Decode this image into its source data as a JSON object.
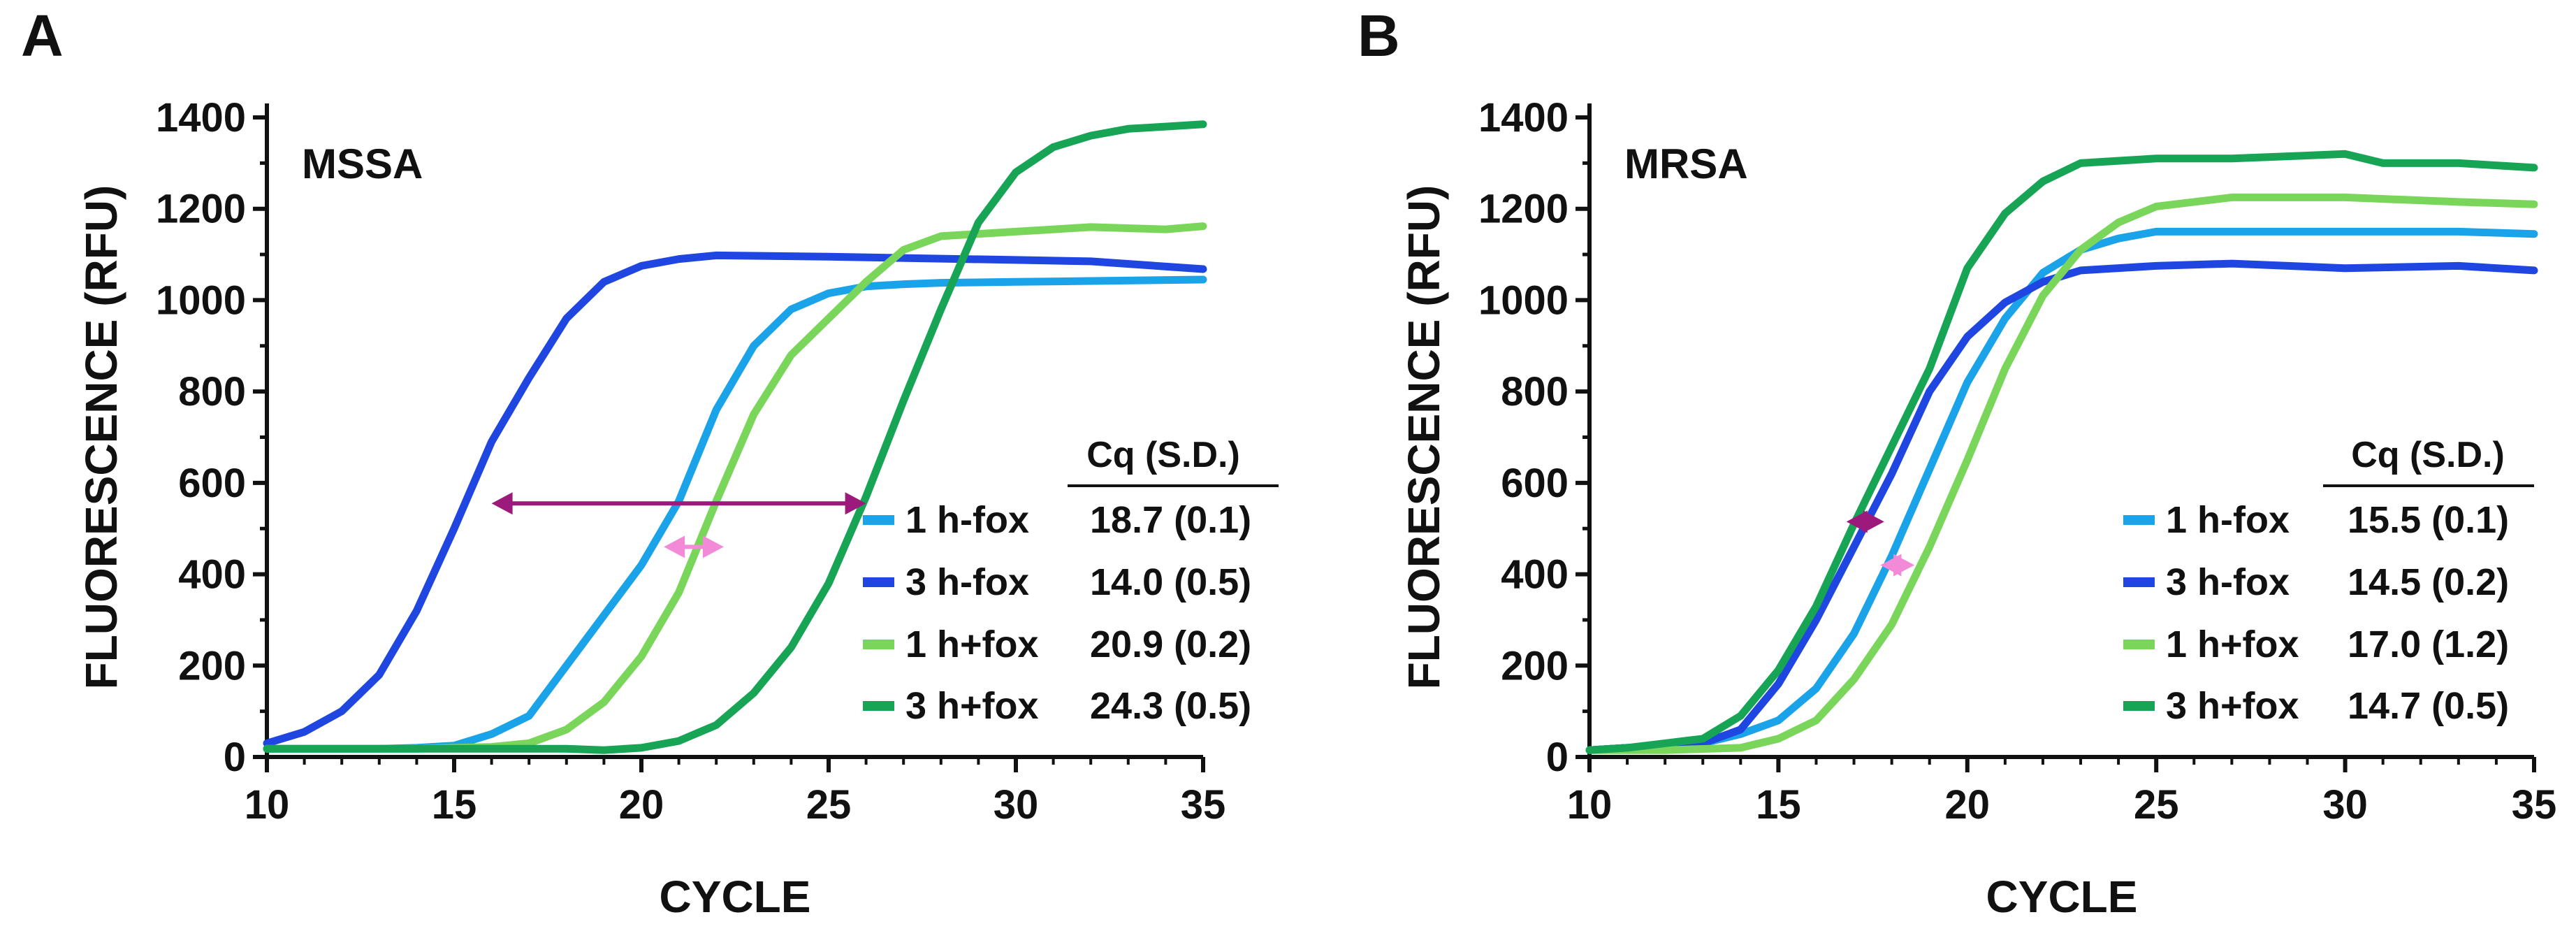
{
  "figure": {
    "background": "#ffffff",
    "text_color": "#111111"
  },
  "chart_data": [
    {
      "panel": "A",
      "type": "line",
      "title": "MSSA",
      "xlabel": "CYCLE",
      "ylabel": "FLUORESCENCE (RFU)",
      "xlim": [
        10,
        35
      ],
      "ylim": [
        0,
        1400
      ],
      "xticks": [
        10,
        15,
        20,
        25,
        30,
        35
      ],
      "yticks": [
        0,
        200,
        400,
        600,
        800,
        1000,
        1200,
        1400
      ],
      "grid": false,
      "legend_position": "bottom-right",
      "cq_header": "Cq (S.D.)",
      "series": [
        {
          "name": "1 h-fox",
          "cq": "18.7 (0.1)",
          "color": "#1aa3e8",
          "points": [
            [
              10,
              18
            ],
            [
              11,
              18
            ],
            [
              12,
              18
            ],
            [
              13,
              18
            ],
            [
              14,
              20
            ],
            [
              15,
              25
            ],
            [
              16,
              50
            ],
            [
              17,
              90
            ],
            [
              18,
              200
            ],
            [
              19,
              310
            ],
            [
              20,
              420
            ],
            [
              21,
              560
            ],
            [
              22,
              760
            ],
            [
              23,
              900
            ],
            [
              24,
              980
            ],
            [
              25,
              1015
            ],
            [
              26,
              1030
            ],
            [
              27,
              1035
            ],
            [
              28,
              1038
            ],
            [
              30,
              1040
            ],
            [
              32,
              1042
            ],
            [
              35,
              1045
            ]
          ]
        },
        {
          "name": "3 h-fox",
          "cq": "14.0 (0.5)",
          "color": "#1f46e0",
          "points": [
            [
              10,
              30
            ],
            [
              11,
              55
            ],
            [
              12,
              100
            ],
            [
              13,
              180
            ],
            [
              14,
              320
            ],
            [
              15,
              500
            ],
            [
              16,
              690
            ],
            [
              17,
              830
            ],
            [
              18,
              960
            ],
            [
              19,
              1040
            ],
            [
              20,
              1075
            ],
            [
              21,
              1090
            ],
            [
              22,
              1098
            ],
            [
              25,
              1095
            ],
            [
              30,
              1088
            ],
            [
              32,
              1085
            ],
            [
              35,
              1068
            ]
          ]
        },
        {
          "name": "1 h+fox",
          "cq": "20.9 (0.2)",
          "color": "#7ad65a",
          "points": [
            [
              10,
              18
            ],
            [
              12,
              18
            ],
            [
              14,
              18
            ],
            [
              16,
              22
            ],
            [
              17,
              30
            ],
            [
              18,
              60
            ],
            [
              19,
              120
            ],
            [
              20,
              220
            ],
            [
              21,
              360
            ],
            [
              22,
              560
            ],
            [
              23,
              750
            ],
            [
              24,
              880
            ],
            [
              25,
              960
            ],
            [
              26,
              1040
            ],
            [
              27,
              1110
            ],
            [
              28,
              1140
            ],
            [
              30,
              1150
            ],
            [
              32,
              1160
            ],
            [
              34,
              1155
            ],
            [
              35,
              1162
            ]
          ]
        },
        {
          "name": "3 h+fox",
          "cq": "24.3 (0.5)",
          "color": "#17a555",
          "points": [
            [
              10,
              18
            ],
            [
              14,
              18
            ],
            [
              18,
              18
            ],
            [
              19,
              15
            ],
            [
              20,
              20
            ],
            [
              21,
              35
            ],
            [
              22,
              70
            ],
            [
              23,
              140
            ],
            [
              24,
              240
            ],
            [
              25,
              380
            ],
            [
              26,
              570
            ],
            [
              27,
              780
            ],
            [
              28,
              980
            ],
            [
              29,
              1170
            ],
            [
              30,
              1280
            ],
            [
              31,
              1335
            ],
            [
              32,
              1360
            ],
            [
              33,
              1375
            ],
            [
              34,
              1380
            ],
            [
              35,
              1385
            ]
          ]
        }
      ],
      "annotations": [
        {
          "type": "double-arrow",
          "from": [
            16,
            555
          ],
          "to": [
            26,
            555
          ],
          "color": "#9c1a7c"
        },
        {
          "type": "double-arrow",
          "from": [
            20.6,
            460
          ],
          "to": [
            22.2,
            460
          ],
          "color": "#f28ad8"
        }
      ]
    },
    {
      "panel": "B",
      "type": "line",
      "title": "MRSA",
      "xlabel": "CYCLE",
      "ylabel": "FLUORESCENCE (RFU)",
      "xlim": [
        10,
        35
      ],
      "ylim": [
        0,
        1400
      ],
      "xticks": [
        10,
        15,
        20,
        25,
        30,
        35
      ],
      "yticks": [
        0,
        200,
        400,
        600,
        800,
        1000,
        1200,
        1400
      ],
      "grid": false,
      "legend_position": "bottom-right",
      "cq_header": "Cq (S.D.)",
      "series": [
        {
          "name": "1 h-fox",
          "cq": "15.5 (0.1)",
          "color": "#1aa3e8",
          "points": [
            [
              10,
              15
            ],
            [
              11,
              20
            ],
            [
              12,
              25
            ],
            [
              13,
              30
            ],
            [
              14,
              50
            ],
            [
              15,
              80
            ],
            [
              16,
              150
            ],
            [
              17,
              270
            ],
            [
              18,
              440
            ],
            [
              19,
              630
            ],
            [
              20,
              820
            ],
            [
              21,
              960
            ],
            [
              22,
              1060
            ],
            [
              23,
              1110
            ],
            [
              24,
              1135
            ],
            [
              25,
              1150
            ],
            [
              30,
              1150
            ],
            [
              33,
              1150
            ],
            [
              35,
              1145
            ]
          ]
        },
        {
          "name": "3 h-fox",
          "cq": "14.5 (0.2)",
          "color": "#1f46e0",
          "points": [
            [
              10,
              15
            ],
            [
              11,
              20
            ],
            [
              12,
              25
            ],
            [
              13,
              30
            ],
            [
              14,
              60
            ],
            [
              15,
              160
            ],
            [
              16,
              300
            ],
            [
              17,
              460
            ],
            [
              18,
              620
            ],
            [
              19,
              800
            ],
            [
              20,
              920
            ],
            [
              21,
              995
            ],
            [
              22,
              1040
            ],
            [
              23,
              1065
            ],
            [
              25,
              1075
            ],
            [
              27,
              1080
            ],
            [
              30,
              1070
            ],
            [
              33,
              1075
            ],
            [
              35,
              1065
            ]
          ]
        },
        {
          "name": "1 h+fox",
          "cq": "17.0 (1.2)",
          "color": "#7ad65a",
          "points": [
            [
              10,
              15
            ],
            [
              12,
              15
            ],
            [
              14,
              20
            ],
            [
              15,
              40
            ],
            [
              16,
              80
            ],
            [
              17,
              170
            ],
            [
              18,
              290
            ],
            [
              19,
              460
            ],
            [
              20,
              650
            ],
            [
              21,
              850
            ],
            [
              22,
              1010
            ],
            [
              23,
              1110
            ],
            [
              24,
              1170
            ],
            [
              25,
              1205
            ],
            [
              27,
              1225
            ],
            [
              30,
              1225
            ],
            [
              33,
              1215
            ],
            [
              35,
              1210
            ]
          ]
        },
        {
          "name": "3 h+fox",
          "cq": "14.7 (0.5)",
          "color": "#17a555",
          "points": [
            [
              10,
              15
            ],
            [
              11,
              20
            ],
            [
              12,
              30
            ],
            [
              13,
              40
            ],
            [
              14,
              90
            ],
            [
              15,
              190
            ],
            [
              16,
              330
            ],
            [
              17,
              510
            ],
            [
              18,
              680
            ],
            [
              19,
              850
            ],
            [
              20,
              1070
            ],
            [
              21,
              1190
            ],
            [
              22,
              1260
            ],
            [
              23,
              1300
            ],
            [
              25,
              1310
            ],
            [
              27,
              1310
            ],
            [
              30,
              1320
            ],
            [
              31,
              1300
            ],
            [
              33,
              1300
            ],
            [
              35,
              1290
            ]
          ]
        }
      ],
      "annotations": [
        {
          "type": "double-arrow",
          "from": [
            16.8,
            515
          ],
          "to": [
            17.8,
            515
          ],
          "color": "#9c1a7c"
        },
        {
          "type": "double-arrow",
          "from": [
            17.7,
            420
          ],
          "to": [
            18.6,
            420
          ],
          "color": "#f28ad8"
        }
      ]
    }
  ]
}
